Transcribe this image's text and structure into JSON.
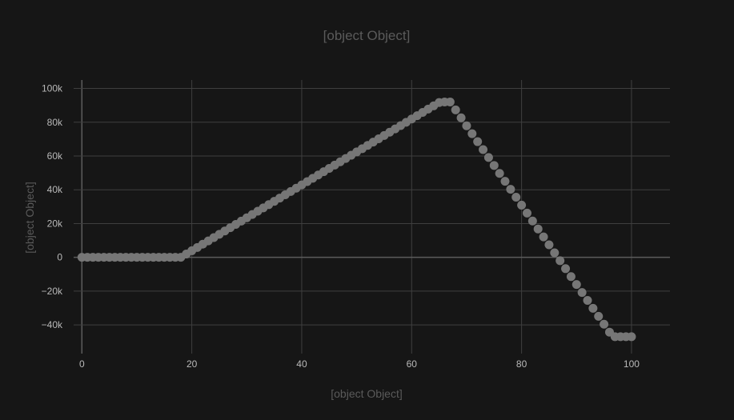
{
  "chart_data": {
    "type": "scatter",
    "title": "[object Object]",
    "xlabel": "[object Object]",
    "ylabel": "[object Object]",
    "xlim": [
      -1.5,
      107
    ],
    "ylim": [
      -57000,
      105000
    ],
    "x_ticks": [
      0,
      20,
      40,
      60,
      80,
      100
    ],
    "x_tick_labels": [
      "0",
      "20",
      "40",
      "60",
      "80",
      "100"
    ],
    "y_ticks": [
      -40000,
      -20000,
      0,
      20000,
      40000,
      60000,
      80000,
      100000
    ],
    "y_tick_labels": [
      "−40k",
      "−20k",
      "0",
      "20k",
      "40k",
      "60k",
      "80k",
      "100k"
    ],
    "grid": true,
    "marker_color": "#767676",
    "series": [
      {
        "x": [
          0,
          1,
          2,
          3,
          4,
          5,
          6,
          7,
          8,
          9,
          10,
          11,
          12,
          13,
          14,
          15,
          16,
          17,
          18,
          19,
          20,
          21,
          22,
          23,
          24,
          25,
          26,
          27,
          28,
          29,
          30,
          31,
          32,
          33,
          34,
          35,
          36,
          37,
          38,
          39,
          40,
          41,
          42,
          43,
          44,
          45,
          46,
          47,
          48,
          49,
          50,
          51,
          52,
          53,
          54,
          55,
          56,
          57,
          58,
          59,
          60,
          61,
          62,
          63,
          64,
          65,
          66,
          67,
          68,
          69,
          70,
          71,
          72,
          73,
          74,
          75,
          76,
          77,
          78,
          79,
          80,
          81,
          82,
          83,
          84,
          85,
          86,
          87,
          88,
          89,
          90,
          91,
          92,
          93,
          94,
          95,
          96,
          97,
          98,
          99,
          100
        ],
        "y": [
          0,
          0,
          0,
          0,
          0,
          0,
          0,
          0,
          0,
          0,
          0,
          0,
          0,
          0,
          0,
          0,
          0,
          0,
          0,
          1950,
          3900,
          5850,
          7800,
          9750,
          11700,
          13650,
          15600,
          17550,
          19500,
          21450,
          23400,
          25350,
          27300,
          29250,
          31200,
          33150,
          35100,
          37050,
          39000,
          40950,
          42900,
          44850,
          46800,
          48750,
          50700,
          52650,
          54600,
          56550,
          58500,
          60450,
          62400,
          64350,
          66300,
          68250,
          70200,
          72150,
          74100,
          76050,
          78000,
          79950,
          81900,
          83850,
          85800,
          87750,
          89700,
          91650,
          92000,
          92000,
          87300,
          82600,
          77900,
          73200,
          68500,
          63800,
          59100,
          54400,
          49700,
          45000,
          40300,
          35600,
          30900,
          26200,
          21500,
          16800,
          12100,
          7400,
          2700,
          -2000,
          -6700,
          -11400,
          -16100,
          -20800,
          -25500,
          -30200,
          -34900,
          -39600,
          -44300,
          -47000,
          -47000,
          -47000,
          -47000
        ]
      }
    ]
  }
}
